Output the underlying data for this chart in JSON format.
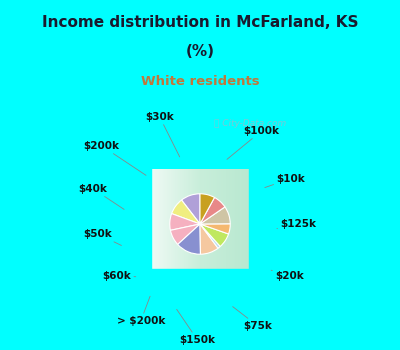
{
  "title_line1": "Income distribution in McFarland, KS",
  "title_line2": "(%)",
  "subtitle": "White residents",
  "title_color": "#1a1a2e",
  "subtitle_color": "#c0783c",
  "bg_top_color": "#00ffff",
  "watermark": "ⓘ City-Data.com",
  "labels": [
    "$100k",
    "$10k",
    "$125k",
    "$20k",
    "$75k",
    "$150k",
    "> $200k",
    "$60k",
    "$50k",
    "$40k",
    "$200k",
    "$30k"
  ],
  "values": [
    10.5,
    9.0,
    9.0,
    8.5,
    13.5,
    10.0,
    1.5,
    8.0,
    5.5,
    9.5,
    7.5,
    8.0
  ],
  "colors": [
    "#b0a0d8",
    "#f0ee80",
    "#f5b0c0",
    "#f5b0c0",
    "#8890d0",
    "#f5c8a0",
    "#b8ddf0",
    "#c0e860",
    "#f5b870",
    "#cfc5a5",
    "#e88888",
    "#c8a020"
  ],
  "startangle": 90,
  "figsize": [
    4.0,
    3.5
  ],
  "dpi": 100
}
